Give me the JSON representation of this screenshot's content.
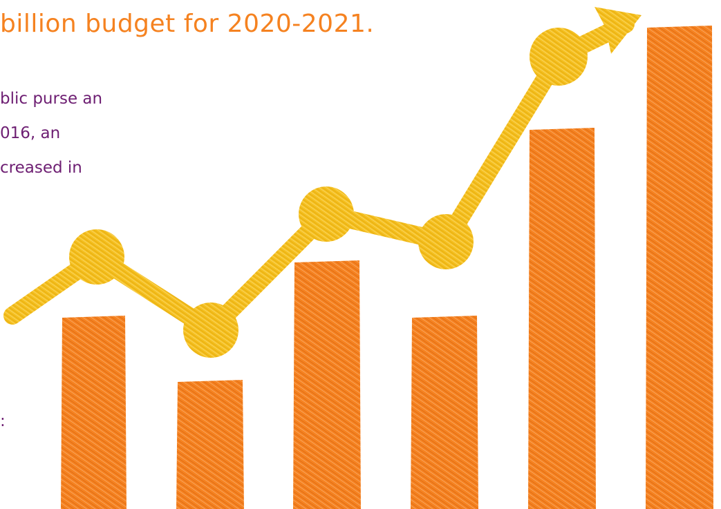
{
  "headline": "billion budget for 2020-2021.",
  "body_lines": [
    "blic purse an",
    "016, an",
    "creased in"
  ],
  "trailing_fragment": ":",
  "colors": {
    "headline": "#f58220",
    "body_text": "#6d1e72",
    "bars": "#f58220",
    "trend_line": "#f5c01f"
  },
  "illustration": {
    "icon": "growth-chart-illustration",
    "bar_count": 6,
    "trend_points": 6,
    "style": "hand-scribbled"
  }
}
